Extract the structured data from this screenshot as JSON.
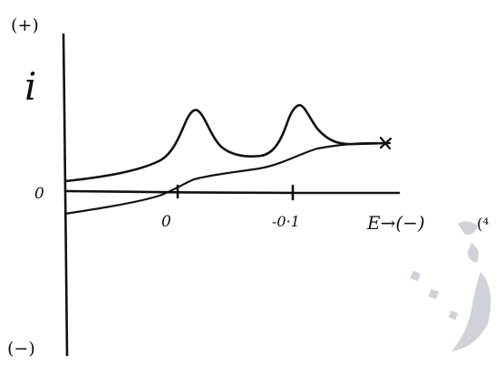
{
  "labels": {
    "y_positive": "(+)",
    "y_symbol": "i",
    "y_zero": "0",
    "y_negative": "(−)",
    "x_tick_zero": "0",
    "x_tick_minus": "-0·1",
    "x_axis": "E→(−)",
    "corner_fragment": "(⁴"
  },
  "colors": {
    "ink": "#111111",
    "watermark": "#cfd3d8",
    "background": "#ffffff"
  }
}
